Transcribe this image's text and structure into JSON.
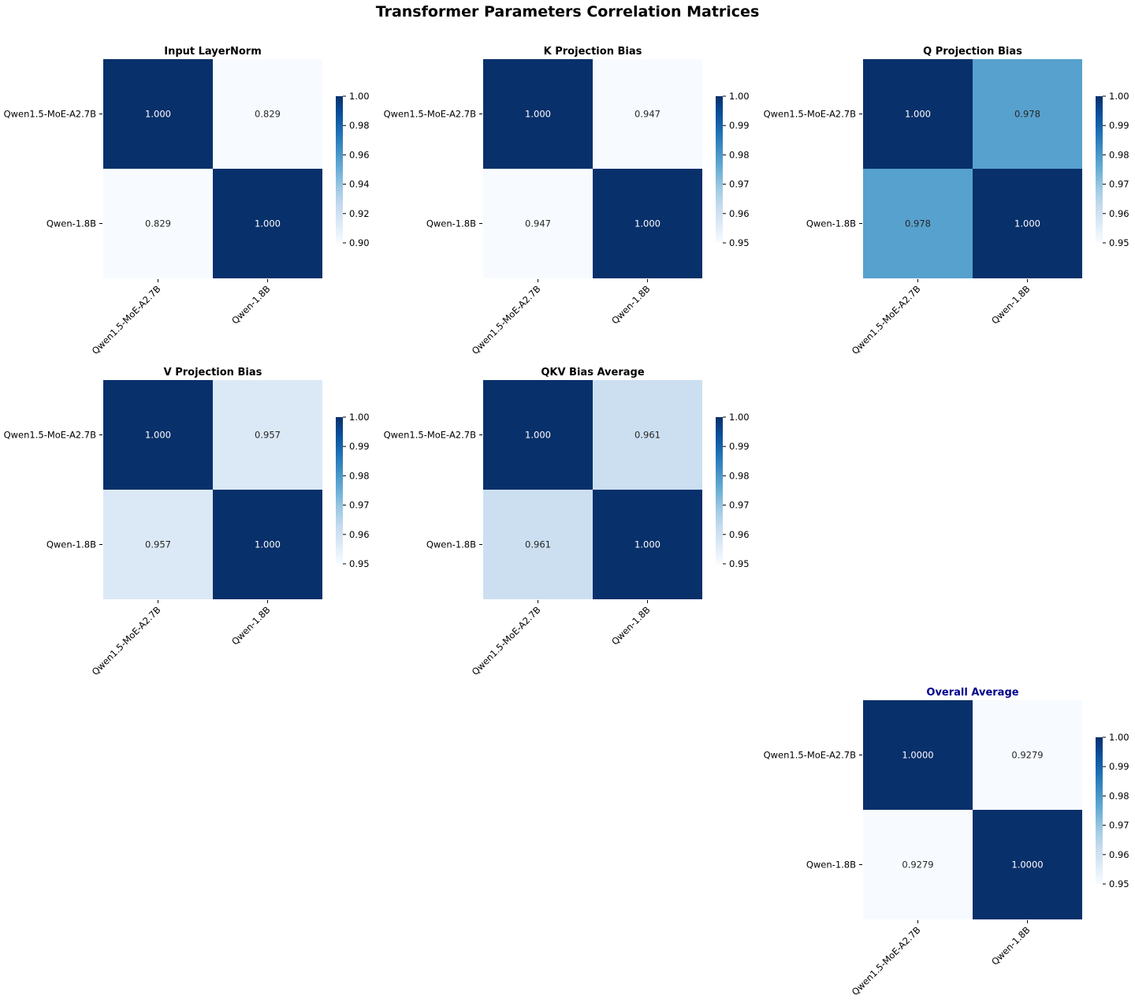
{
  "figure": {
    "title": "Transformer Parameters Correlation Matrices"
  },
  "colors": {
    "low": "#f7fbff",
    "mid_light": "#c6dbef",
    "mid": "#6baed6",
    "mid_dark": "#2171b5",
    "high": "#08306b",
    "text_dark_cell": "#ffffff",
    "text_light_cell": "#262626",
    "highlight_title": "#00008b"
  },
  "chart_data": [
    {
      "type": "heatmap",
      "title": "Input LayerNorm",
      "title_color": "#000000",
      "rows": [
        "Qwen1.5-MoE-A2.7B",
        "Qwen-1.8B"
      ],
      "cols": [
        "Qwen1.5-MoE-A2.7B",
        "Qwen-1.8B"
      ],
      "values": [
        [
          1.0,
          0.829
        ],
        [
          0.829,
          1.0
        ]
      ],
      "value_labels": [
        [
          "1.000",
          "0.829"
        ],
        [
          "0.829",
          "1.000"
        ]
      ],
      "vmin": 0.9,
      "vmax": 1.0,
      "colorbar_ticks": [
        "0.90",
        "0.92",
        "0.94",
        "0.96",
        "0.98",
        "1.00"
      ],
      "colorbar_tick_values": [
        0.9,
        0.92,
        0.94,
        0.96,
        0.98,
        1.0
      ],
      "cmap": "Blues"
    },
    {
      "type": "heatmap",
      "title": "K Projection Bias",
      "title_color": "#000000",
      "rows": [
        "Qwen1.5-MoE-A2.7B",
        "Qwen-1.8B"
      ],
      "cols": [
        "Qwen1.5-MoE-A2.7B",
        "Qwen-1.8B"
      ],
      "values": [
        [
          1.0,
          0.947
        ],
        [
          0.947,
          1.0
        ]
      ],
      "value_labels": [
        [
          "1.000",
          "0.947"
        ],
        [
          "0.947",
          "1.000"
        ]
      ],
      "vmin": 0.95,
      "vmax": 1.0,
      "colorbar_ticks": [
        "0.95",
        "0.96",
        "0.97",
        "0.98",
        "0.99",
        "1.00"
      ],
      "colorbar_tick_values": [
        0.95,
        0.96,
        0.97,
        0.98,
        0.99,
        1.0
      ],
      "cmap": "Blues"
    },
    {
      "type": "heatmap",
      "title": "Q Projection Bias",
      "title_color": "#000000",
      "rows": [
        "Qwen1.5-MoE-A2.7B",
        "Qwen-1.8B"
      ],
      "cols": [
        "Qwen1.5-MoE-A2.7B",
        "Qwen-1.8B"
      ],
      "values": [
        [
          1.0,
          0.978
        ],
        [
          0.978,
          1.0
        ]
      ],
      "value_labels": [
        [
          "1.000",
          "0.978"
        ],
        [
          "0.978",
          "1.000"
        ]
      ],
      "vmin": 0.95,
      "vmax": 1.0,
      "colorbar_ticks": [
        "0.95",
        "0.96",
        "0.97",
        "0.98",
        "0.99",
        "1.00"
      ],
      "colorbar_tick_values": [
        0.95,
        0.96,
        0.97,
        0.98,
        0.99,
        1.0
      ],
      "cmap": "Blues"
    },
    {
      "type": "heatmap",
      "title": "V Projection Bias",
      "title_color": "#000000",
      "rows": [
        "Qwen1.5-MoE-A2.7B",
        "Qwen-1.8B"
      ],
      "cols": [
        "Qwen1.5-MoE-A2.7B",
        "Qwen-1.8B"
      ],
      "values": [
        [
          1.0,
          0.957
        ],
        [
          0.957,
          1.0
        ]
      ],
      "value_labels": [
        [
          "1.000",
          "0.957"
        ],
        [
          "0.957",
          "1.000"
        ]
      ],
      "vmin": 0.95,
      "vmax": 1.0,
      "colorbar_ticks": [
        "0.95",
        "0.96",
        "0.97",
        "0.98",
        "0.99",
        "1.00"
      ],
      "colorbar_tick_values": [
        0.95,
        0.96,
        0.97,
        0.98,
        0.99,
        1.0
      ],
      "cmap": "Blues"
    },
    {
      "type": "heatmap",
      "title": "QKV Bias Average",
      "title_color": "#000000",
      "rows": [
        "Qwen1.5-MoE-A2.7B",
        "Qwen-1.8B"
      ],
      "cols": [
        "Qwen1.5-MoE-A2.7B",
        "Qwen-1.8B"
      ],
      "values": [
        [
          1.0,
          0.961
        ],
        [
          0.961,
          1.0
        ]
      ],
      "value_labels": [
        [
          "1.000",
          "0.961"
        ],
        [
          "0.961",
          "1.000"
        ]
      ],
      "vmin": 0.95,
      "vmax": 1.0,
      "colorbar_ticks": [
        "0.95",
        "0.96",
        "0.97",
        "0.98",
        "0.99",
        "1.00"
      ],
      "colorbar_tick_values": [
        0.95,
        0.96,
        0.97,
        0.98,
        0.99,
        1.0
      ],
      "cmap": "Blues"
    },
    {
      "type": "heatmap",
      "title": "Overall Average",
      "title_color": "#00008b",
      "rows": [
        "Qwen1.5-MoE-A2.7B",
        "Qwen-1.8B"
      ],
      "cols": [
        "Qwen1.5-MoE-A2.7B",
        "Qwen-1.8B"
      ],
      "values": [
        [
          1.0,
          0.9279
        ],
        [
          0.9279,
          1.0
        ]
      ],
      "value_labels": [
        [
          "1.0000",
          "0.9279"
        ],
        [
          "0.9279",
          "1.0000"
        ]
      ],
      "vmin": 0.95,
      "vmax": 1.0,
      "colorbar_ticks": [
        "0.95",
        "0.96",
        "0.97",
        "0.98",
        "0.99",
        "1.00"
      ],
      "colorbar_tick_values": [
        0.95,
        0.96,
        0.97,
        0.98,
        0.99,
        1.0
      ],
      "cmap": "Blues"
    }
  ]
}
